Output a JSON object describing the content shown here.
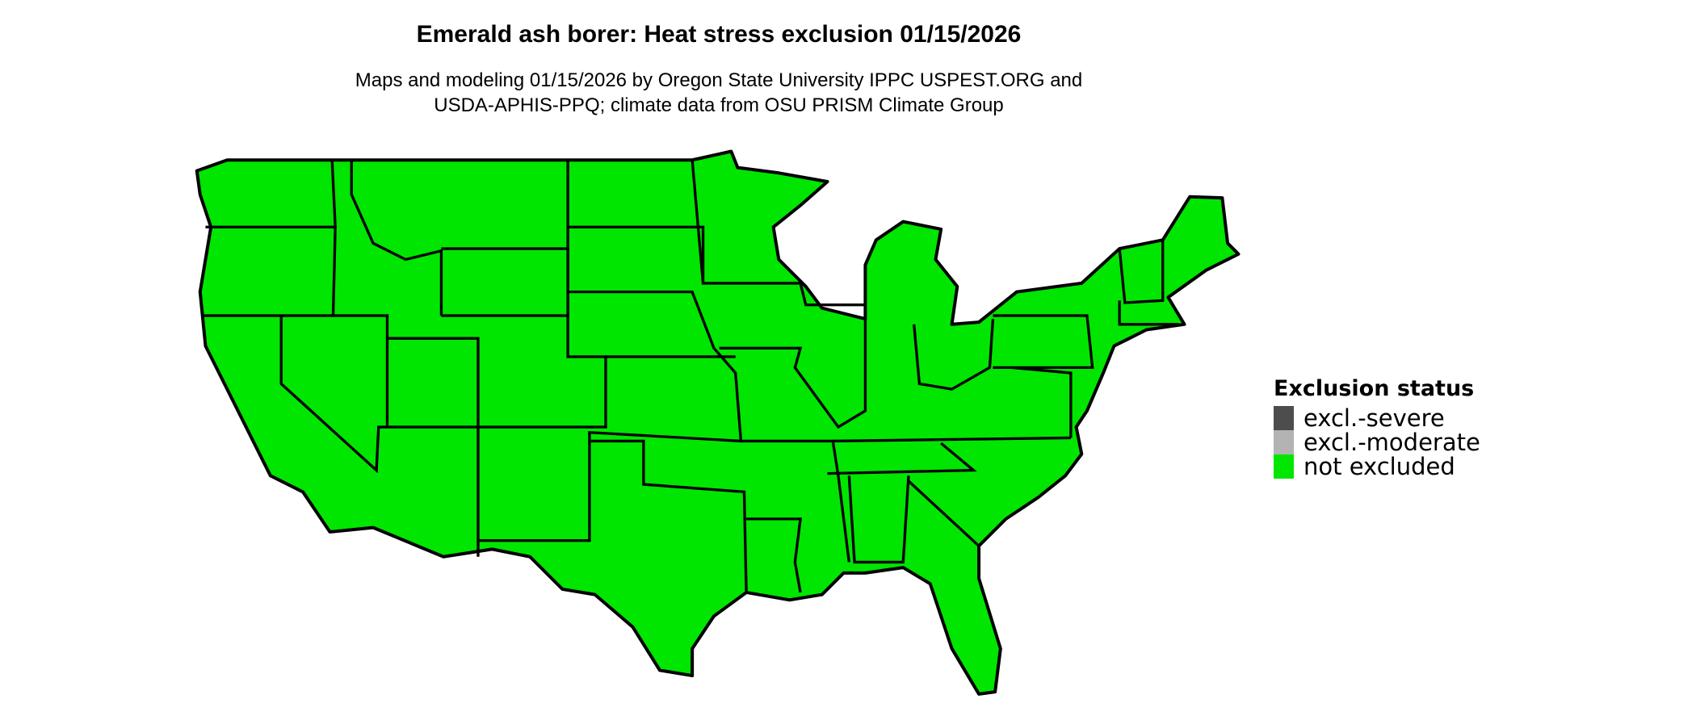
{
  "title": "Emerald ash borer: Heat stress exclusion 01/15/2026",
  "subtitle_lines": [
    "Maps and modeling 01/15/2026 by Oregon State University IPPC USPEST.ORG and",
    "USDA-APHIS-PPQ; climate data from OSU PRISM Climate Group"
  ],
  "map": {
    "region": "contiguous United States",
    "fill_status": "not excluded",
    "border_color": "#000000"
  },
  "legend": {
    "title": "Exclusion status",
    "items": [
      {
        "label": "excl.-severe",
        "color": "#4d4d4d"
      },
      {
        "label": "excl.-moderate",
        "color": "#b3b3b3"
      },
      {
        "label": "not excluded",
        "color": "#00e600"
      }
    ]
  }
}
